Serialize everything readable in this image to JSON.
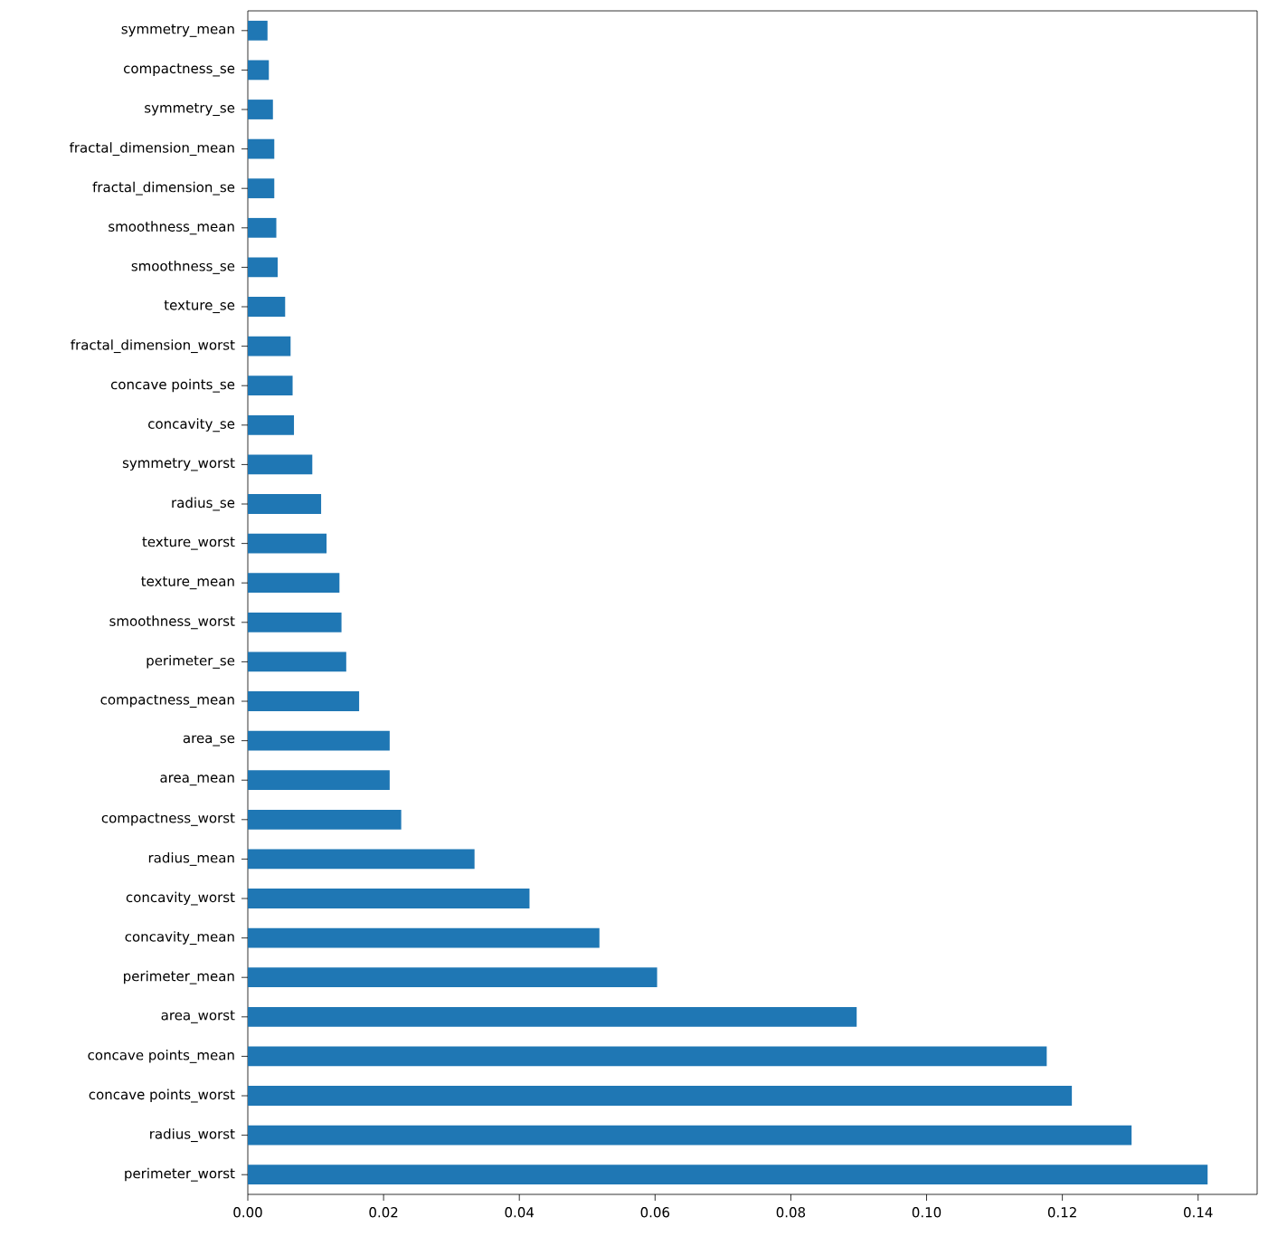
{
  "chart_data": {
    "type": "bar",
    "orientation": "horizontal",
    "color": "#1f77b4",
    "categories": [
      "symmetry_mean",
      "compactness_se",
      "symmetry_se",
      "fractal_dimension_mean",
      "fractal_dimension_se",
      "smoothness_mean",
      "smoothness_se",
      "texture_se",
      "fractal_dimension_worst",
      "concave points_se",
      "concavity_se",
      "symmetry_worst",
      "radius_se",
      "texture_worst",
      "texture_mean",
      "smoothness_worst",
      "perimeter_se",
      "compactness_mean",
      "area_se",
      "area_mean",
      "compactness_worst",
      "radius_mean",
      "concavity_worst",
      "concavity_mean",
      "perimeter_mean",
      "area_worst",
      "concave points_mean",
      "concave points_worst",
      "radius_worst",
      "perimeter_worst"
    ],
    "values": [
      0.0029,
      0.0031,
      0.0037,
      0.0039,
      0.0039,
      0.0042,
      0.0044,
      0.0055,
      0.0063,
      0.0066,
      0.0068,
      0.0095,
      0.0108,
      0.0116,
      0.0135,
      0.0138,
      0.0145,
      0.0164,
      0.0209,
      0.0209,
      0.0226,
      0.0334,
      0.0415,
      0.0518,
      0.0603,
      0.0897,
      0.1177,
      0.1214,
      0.1302,
      0.1414
    ],
    "xlim": [
      0,
      0.1487
    ],
    "xticks": [
      {
        "value": 0,
        "label": "0.00"
      },
      {
        "value": 0.02,
        "label": "0.02"
      },
      {
        "value": 0.04,
        "label": "0.04"
      },
      {
        "value": 0.06,
        "label": "0.06"
      },
      {
        "value": 0.08,
        "label": "0.08"
      },
      {
        "value": 0.1,
        "label": "0.10"
      },
      {
        "value": 0.12,
        "label": "0.12"
      },
      {
        "value": 0.14,
        "label": "0.14"
      }
    ]
  }
}
